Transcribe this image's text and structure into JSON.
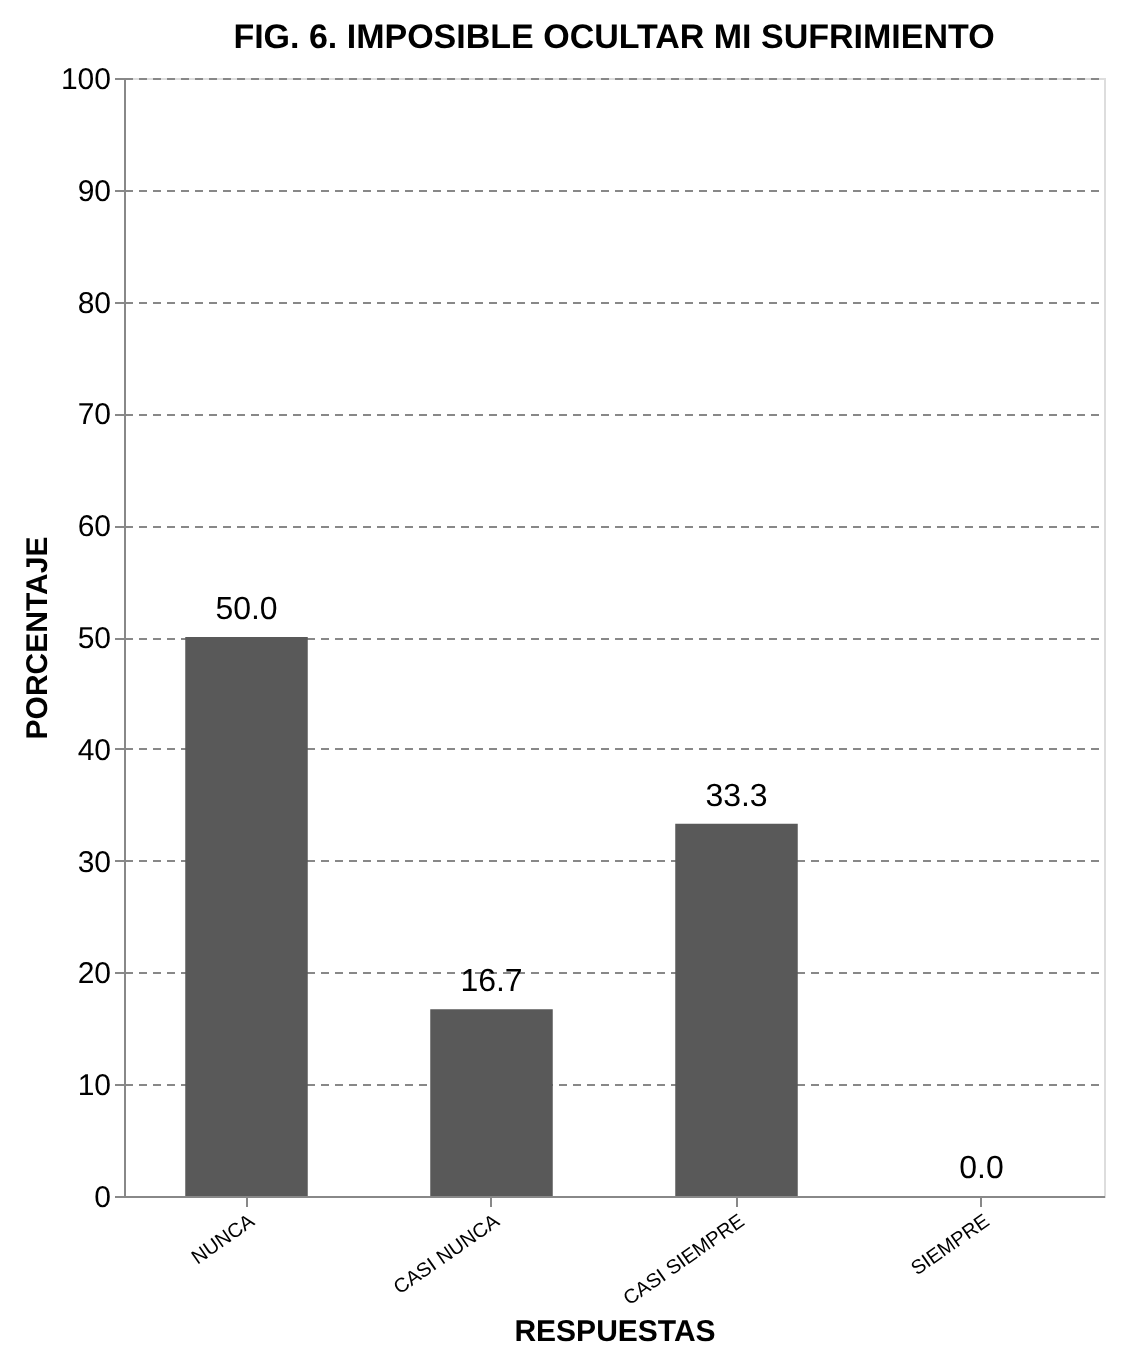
{
  "chart_data": {
    "type": "bar",
    "title": "FIG. 6. IMPOSIBLE OCULTAR MI SUFRIMIENTO",
    "xlabel": "RESPUESTAS",
    "ylabel": "PORCENTAJE",
    "categories": [
      "NUNCA",
      "CASI NUNCA",
      "CASI SIEMPRE",
      "SIEMPRE"
    ],
    "values": [
      50.0,
      16.7,
      33.3,
      0.0
    ],
    "color": "#595959",
    "ylim": [
      0,
      100
    ],
    "yticks": [
      0,
      10,
      20,
      30,
      40,
      50,
      60,
      70,
      80,
      90,
      100
    ],
    "grid": "y",
    "value_labels": [
      "50.0",
      "16.7",
      "33.3",
      "0.0"
    ]
  }
}
